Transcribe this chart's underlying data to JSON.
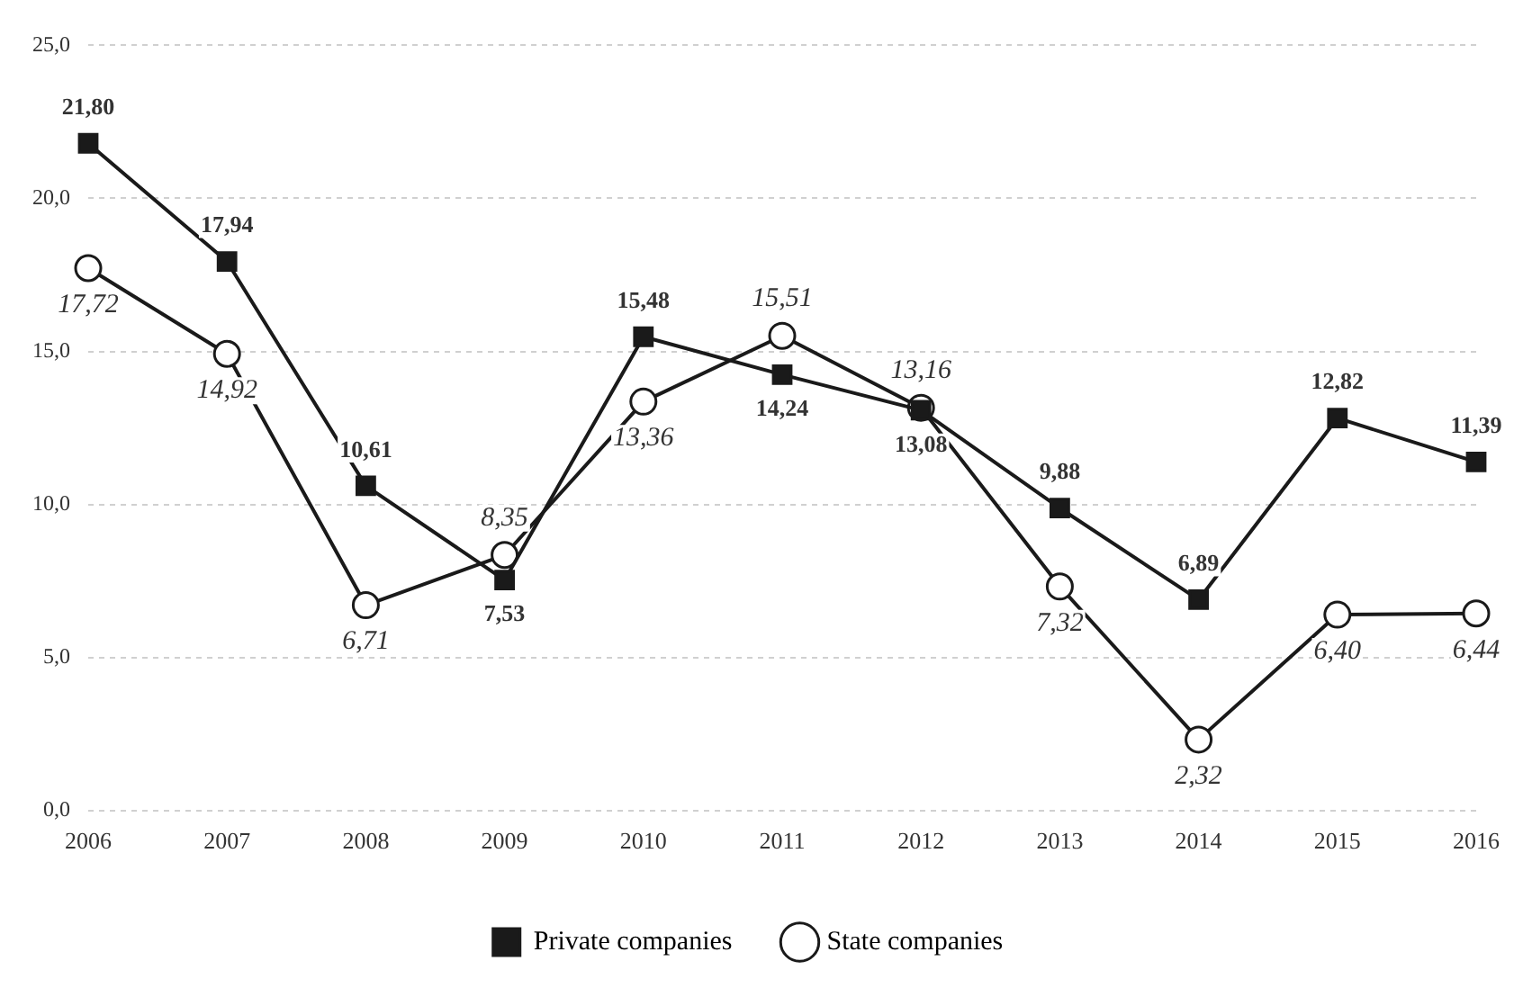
{
  "chart_data": {
    "type": "line",
    "categories": [
      "2006",
      "2007",
      "2008",
      "2009",
      "2010",
      "2011",
      "2012",
      "2013",
      "2014",
      "2015",
      "2016"
    ],
    "series": [
      {
        "name": "Private companies",
        "color": "#1a1a1a",
        "marker": "square",
        "values": [
          21.8,
          17.94,
          10.61,
          7.53,
          15.48,
          14.24,
          13.08,
          9.88,
          6.89,
          12.82,
          11.39
        ],
        "value_labels": [
          "21,80",
          "17,94",
          "10,61",
          "7,53",
          "15,48",
          "14,24",
          "13,08",
          "9,88",
          "6,89",
          "12,82",
          "11,39"
        ]
      },
      {
        "name": "State companies",
        "color": "#1a1a1a",
        "marker": "circle",
        "values": [
          17.72,
          14.92,
          6.71,
          8.35,
          13.36,
          15.51,
          13.16,
          7.32,
          2.32,
          6.4,
          6.44
        ],
        "value_labels": [
          "17,72",
          "14,92",
          "6,71",
          "8,35",
          "13,36",
          "15,51",
          "13,16",
          "7,32",
          "2,32",
          "6,40",
          "6,44"
        ]
      }
    ],
    "ylim": [
      0,
      25
    ],
    "yticks": [
      {
        "value": 0,
        "label": "0,0"
      },
      {
        "value": 5,
        "label": "5,0"
      },
      {
        "value": 10,
        "label": "10,0"
      },
      {
        "value": 15,
        "label": "15,0"
      },
      {
        "value": 20,
        "label": "20,0"
      },
      {
        "value": 25,
        "label": "25,0"
      }
    ],
    "grid": "y",
    "legend": "bottom",
    "line_style": "solid"
  }
}
